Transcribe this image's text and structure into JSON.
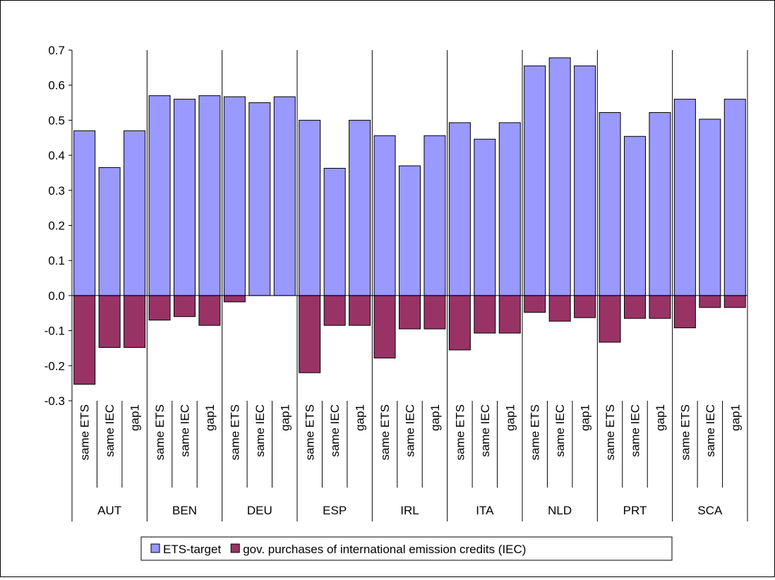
{
  "chart_data": {
    "type": "bar",
    "stacked": true,
    "ylim": [
      -0.3,
      0.7
    ],
    "yticks": [
      "0.7",
      "0.6",
      "0.5",
      "0.4",
      "0.3",
      "0.2",
      "0.1",
      "0.0",
      "-0.1",
      "-0.2",
      "-0.3"
    ],
    "ytick_values": [
      0.7,
      0.6,
      0.5,
      0.4,
      0.3,
      0.2,
      0.1,
      0.0,
      -0.1,
      -0.2,
      -0.3
    ],
    "grid": false,
    "legend_position": "bottom",
    "groups": [
      "AUT",
      "BEN",
      "DEU",
      "ESP",
      "IRL",
      "ITA",
      "NLD",
      "PRT",
      "SCA"
    ],
    "subcategories": [
      "same ETS",
      "same IEC",
      "gap1"
    ],
    "series": [
      {
        "name": "ETS-target",
        "color": "#9999ff",
        "values": [
          [
            0.47,
            0.365,
            0.47
          ],
          [
            0.57,
            0.56,
            0.57
          ],
          [
            0.567,
            0.55,
            0.567
          ],
          [
            0.5,
            0.363,
            0.5
          ],
          [
            0.456,
            0.37,
            0.456
          ],
          [
            0.493,
            0.446,
            0.493
          ],
          [
            0.655,
            0.678,
            0.655
          ],
          [
            0.522,
            0.454,
            0.522
          ],
          [
            0.56,
            0.503,
            0.56
          ]
        ]
      },
      {
        "name": "gov. purchases of international emission credits (IEC)",
        "color": "#993366",
        "values": [
          [
            -0.253,
            -0.148,
            -0.148
          ],
          [
            -0.07,
            -0.06,
            -0.085
          ],
          [
            -0.018,
            0.0,
            0.0
          ],
          [
            -0.22,
            -0.085,
            -0.085
          ],
          [
            -0.178,
            -0.095,
            -0.095
          ],
          [
            -0.155,
            -0.107,
            -0.107
          ],
          [
            -0.048,
            -0.073,
            -0.063
          ],
          [
            -0.133,
            -0.065,
            -0.065
          ],
          [
            -0.092,
            -0.034,
            -0.034
          ]
        ]
      }
    ]
  }
}
